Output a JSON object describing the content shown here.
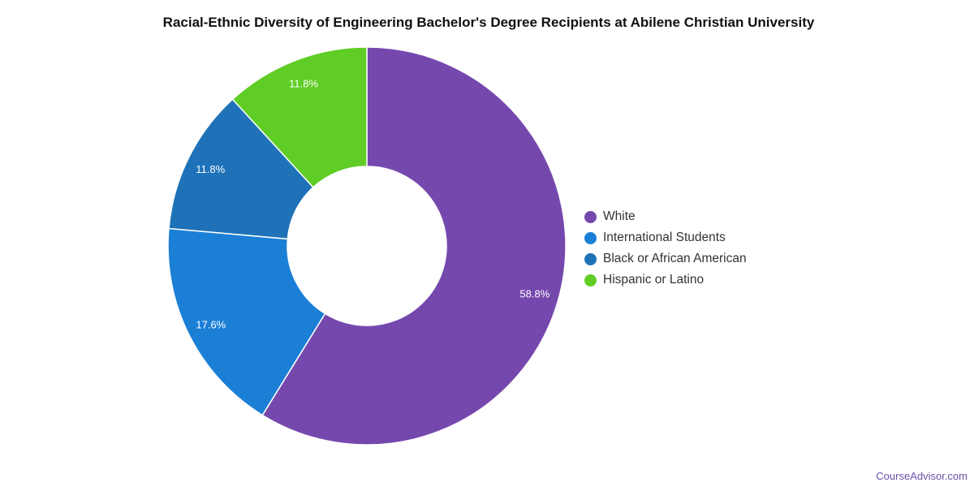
{
  "chart_data": {
    "type": "pie",
    "donut": true,
    "title": "Racial-Ethnic Diversity of Engineering Bachelor's Degree Recipients at Abilene Christian University",
    "slices": [
      {
        "label": "White",
        "value": 58.8,
        "display": "58.8%",
        "color": "#7548ae"
      },
      {
        "label": "International Students",
        "value": 17.6,
        "display": "17.6%",
        "color": "#1b7fd6"
      },
      {
        "label": "Black or African American",
        "value": 11.8,
        "display": "11.8%",
        "color": "#1f72b8"
      },
      {
        "label": "Hispanic or Latino",
        "value": 11.8,
        "display": "11.8%",
        "color": "#5fcd25"
      }
    ],
    "legend_position": "right"
  },
  "footer": {
    "credit": "CourseAdvisor.com"
  }
}
